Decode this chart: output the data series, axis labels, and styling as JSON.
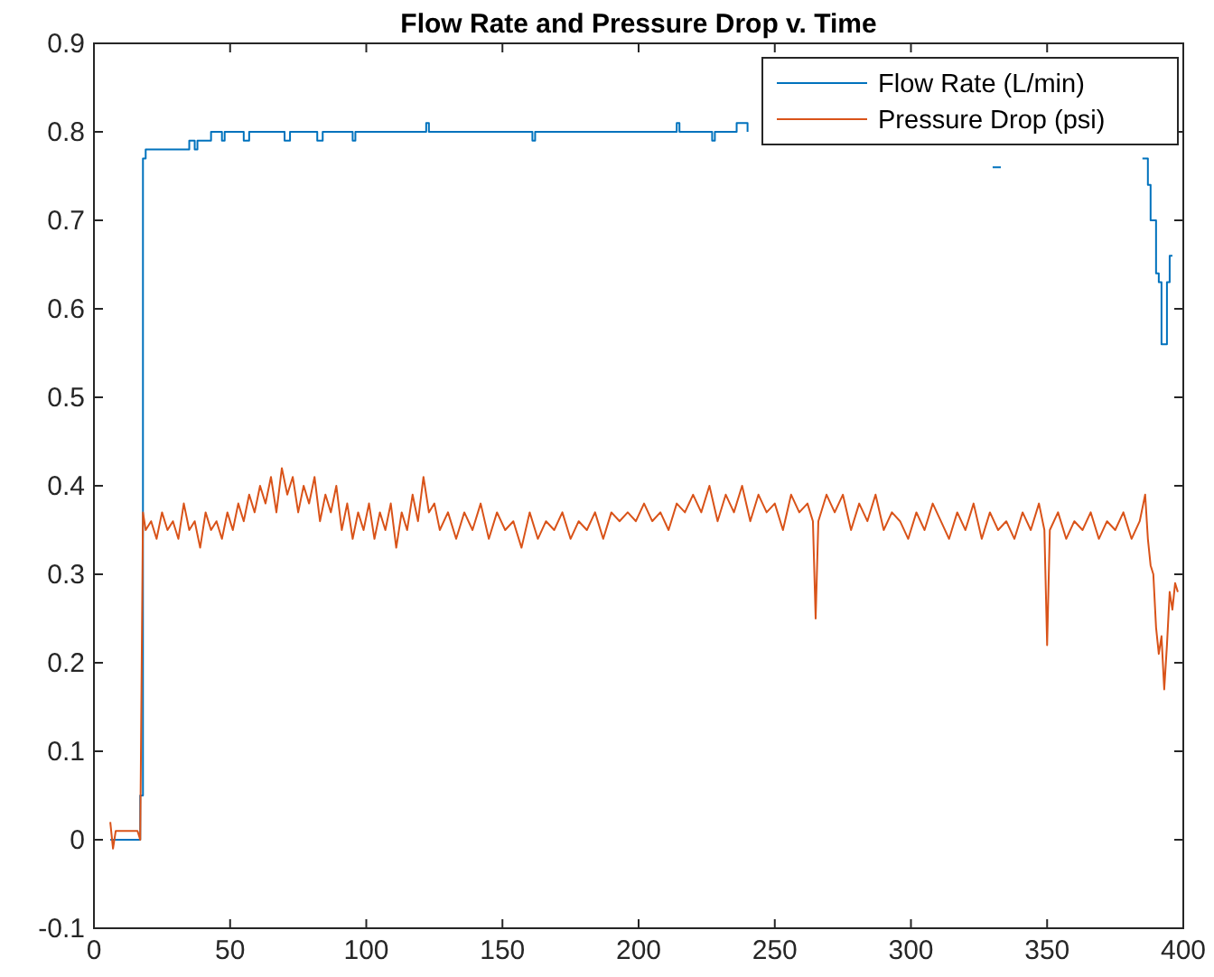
{
  "chart_data": {
    "type": "line",
    "title": "Flow Rate and Pressure Drop v. Time",
    "xlim": [
      0,
      400
    ],
    "xticks": [
      0,
      50,
      100,
      150,
      200,
      250,
      300,
      350,
      400
    ],
    "ylim": [
      -0.1,
      0.9
    ],
    "yticks": [
      -0.1,
      0,
      0.1,
      0.2,
      0.3,
      0.4,
      0.5,
      0.6,
      0.7,
      0.8,
      0.9
    ],
    "grid": false,
    "legend": "top right",
    "marker": "none",
    "line_style": "solid",
    "series": [
      {
        "name": "Flow Rate (L/min)",
        "color": "#0072bd",
        "x": [
          6,
          17,
          17,
          18,
          18,
          19,
          19,
          35,
          35,
          37,
          37,
          38,
          38,
          43,
          43,
          47,
          47,
          48,
          48,
          55,
          55,
          57,
          57,
          70,
          70,
          72,
          72,
          82,
          82,
          84,
          84,
          95,
          95,
          96,
          96,
          122,
          122,
          123,
          123,
          161,
          161,
          162,
          162,
          214,
          214,
          215,
          215,
          227,
          227,
          228,
          228,
          236,
          236,
          240,
          240,
          null,
          330,
          333,
          null,
          null,
          385,
          387,
          387,
          388,
          388,
          390,
          390,
          391,
          391,
          392,
          392,
          394,
          394,
          395,
          395,
          396
        ],
        "values": [
          0,
          0,
          0.05,
          0.05,
          0.77,
          0.77,
          0.78,
          0.78,
          0.79,
          0.79,
          0.78,
          0.78,
          0.79,
          0.79,
          0.8,
          0.8,
          0.79,
          0.79,
          0.8,
          0.8,
          0.79,
          0.79,
          0.8,
          0.8,
          0.79,
          0.79,
          0.8,
          0.8,
          0.79,
          0.79,
          0.8,
          0.8,
          0.79,
          0.79,
          0.8,
          0.8,
          0.81,
          0.81,
          0.8,
          0.8,
          0.79,
          0.79,
          0.8,
          0.8,
          0.81,
          0.81,
          0.8,
          0.8,
          0.79,
          0.79,
          0.8,
          0.8,
          0.81,
          0.81,
          0.8,
          null,
          0.76,
          0.76,
          null,
          null,
          0.77,
          0.77,
          0.74,
          0.74,
          0.7,
          0.7,
          0.64,
          0.64,
          0.63,
          0.63,
          0.56,
          0.56,
          0.63,
          0.63,
          0.66,
          0.66
        ]
      },
      {
        "name": "Pressure Drop (psi)",
        "color": "#d95319",
        "x": [
          6,
          7,
          8,
          16,
          17,
          18,
          19,
          21,
          23,
          25,
          27,
          29,
          31,
          33,
          35,
          37,
          39,
          41,
          43,
          45,
          47,
          49,
          51,
          53,
          55,
          57,
          59,
          61,
          63,
          65,
          67,
          69,
          71,
          73,
          75,
          77,
          79,
          81,
          83,
          85,
          87,
          89,
          91,
          93,
          95,
          97,
          99,
          101,
          103,
          105,
          107,
          109,
          111,
          113,
          115,
          117,
          119,
          121,
          123,
          125,
          127,
          130,
          133,
          136,
          139,
          142,
          145,
          148,
          151,
          154,
          157,
          160,
          163,
          166,
          169,
          172,
          175,
          178,
          181,
          184,
          187,
          190,
          193,
          196,
          199,
          202,
          205,
          208,
          211,
          214,
          217,
          220,
          223,
          226,
          229,
          232,
          235,
          238,
          241,
          244,
          247,
          250,
          253,
          256,
          259,
          262,
          264,
          265,
          266,
          269,
          272,
          275,
          278,
          281,
          284,
          287,
          290,
          293,
          296,
          299,
          302,
          305,
          308,
          311,
          314,
          317,
          320,
          323,
          326,
          329,
          332,
          335,
          338,
          341,
          344,
          347,
          349,
          350,
          351,
          354,
          357,
          360,
          363,
          366,
          369,
          372,
          375,
          378,
          381,
          384,
          386,
          387,
          388,
          389,
          390,
          391,
          392,
          393,
          394,
          395,
          396,
          397,
          398
        ],
        "values": [
          0.02,
          -0.01,
          0.01,
          0.01,
          0,
          0.37,
          0.35,
          0.36,
          0.34,
          0.37,
          0.35,
          0.36,
          0.34,
          0.38,
          0.35,
          0.36,
          0.33,
          0.37,
          0.35,
          0.36,
          0.34,
          0.37,
          0.35,
          0.38,
          0.36,
          0.39,
          0.37,
          0.4,
          0.38,
          0.41,
          0.37,
          0.42,
          0.39,
          0.41,
          0.37,
          0.4,
          0.38,
          0.41,
          0.36,
          0.39,
          0.37,
          0.4,
          0.35,
          0.38,
          0.34,
          0.37,
          0.35,
          0.38,
          0.34,
          0.37,
          0.35,
          0.38,
          0.33,
          0.37,
          0.35,
          0.39,
          0.36,
          0.41,
          0.37,
          0.38,
          0.35,
          0.37,
          0.34,
          0.37,
          0.35,
          0.38,
          0.34,
          0.37,
          0.35,
          0.36,
          0.33,
          0.37,
          0.34,
          0.36,
          0.35,
          0.37,
          0.34,
          0.36,
          0.35,
          0.37,
          0.34,
          0.37,
          0.36,
          0.37,
          0.36,
          0.38,
          0.36,
          0.37,
          0.35,
          0.38,
          0.37,
          0.39,
          0.37,
          0.4,
          0.36,
          0.39,
          0.37,
          0.4,
          0.36,
          0.39,
          0.37,
          0.38,
          0.35,
          0.39,
          0.37,
          0.38,
          0.36,
          0.25,
          0.36,
          0.39,
          0.37,
          0.39,
          0.35,
          0.38,
          0.36,
          0.39,
          0.35,
          0.37,
          0.36,
          0.34,
          0.37,
          0.35,
          0.38,
          0.36,
          0.34,
          0.37,
          0.35,
          0.38,
          0.34,
          0.37,
          0.35,
          0.36,
          0.34,
          0.37,
          0.35,
          0.38,
          0.35,
          0.22,
          0.35,
          0.37,
          0.34,
          0.36,
          0.35,
          0.37,
          0.34,
          0.36,
          0.35,
          0.37,
          0.34,
          0.36,
          0.39,
          0.34,
          0.31,
          0.3,
          0.24,
          0.21,
          0.23,
          0.17,
          0.22,
          0.28,
          0.26,
          0.29,
          0.28
        ]
      }
    ]
  }
}
